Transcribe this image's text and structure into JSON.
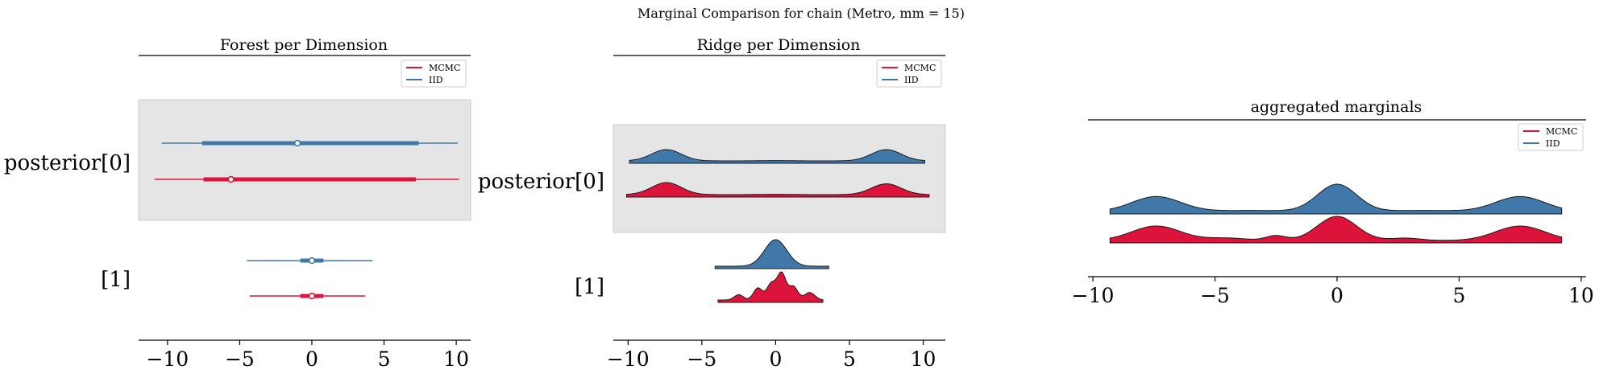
{
  "chart_data": {
    "suptitle": "Marginal Comparison for chain (Metro, mm = 15)",
    "colors": {
      "MCMC": "#dc143c",
      "IID": "#4178aa",
      "shade": "#e5e5e5"
    },
    "legend": [
      "MCMC",
      "IID"
    ],
    "panels": [
      {
        "type": "forest",
        "title": "Forest per Dimension",
        "xlim": [
          -12,
          11
        ],
        "ticks": [
          -10,
          -5,
          0,
          5,
          10
        ],
        "tick_labels": [
          "−10",
          "−5",
          "0",
          "5",
          "10"
        ],
        "rows": [
          {
            "label": "posterior[0]",
            "shaded": true,
            "series": {
              "IID": {
                "hdi94": [
                  -10.4,
                  10.1
                ],
                "hdi50": [
                  -7.6,
                  7.4
                ],
                "center": -1.0
              },
              "MCMC": {
                "hdi94": [
                  -10.9,
                  10.2
                ],
                "hdi50": [
                  -7.5,
                  7.2
                ],
                "center": -5.6
              }
            }
          },
          {
            "label": "[1]",
            "shaded": false,
            "series": {
              "IID": {
                "hdi94": [
                  -4.5,
                  4.2
                ],
                "hdi50": [
                  -0.8,
                  0.8
                ],
                "center": 0.0
              },
              "MCMC": {
                "hdi94": [
                  -4.3,
                  3.7
                ],
                "hdi50": [
                  -0.8,
                  0.8
                ],
                "center": 0.0
              }
            }
          }
        ]
      },
      {
        "type": "ridge",
        "title": "Ridge per Dimension",
        "xlim": [
          -11,
          11.5
        ],
        "ticks": [
          -10,
          -5,
          0,
          5,
          10
        ],
        "tick_labels": [
          "−10",
          "−5",
          "0",
          "5",
          "10"
        ],
        "rows": [
          {
            "label": "posterior[0]",
            "shaded": true,
            "series": {
              "IID": {
                "range": [
                  -9.9,
                  10.1
                ],
                "bumps": [
                  [
                    -7.4,
                    1.0,
                    1.0
                  ],
                  [
                    7.5,
                    1.0,
                    1.0
                  ],
                  [
                    0.0,
                    1.0,
                    0.03
                  ]
                ]
              },
              "MCMC": {
                "range": [
                  -10.1,
                  10.4
                ],
                "bumps": [
                  [
                    -7.4,
                    1.0,
                    1.0
                  ],
                  [
                    7.5,
                    1.0,
                    0.9
                  ],
                  [
                    0.0,
                    1.0,
                    0.03
                  ]
                ]
              }
            }
          },
          {
            "label": "[1]",
            "shaded": false,
            "series": {
              "IID": {
                "range": [
                  -4.1,
                  3.6
                ],
                "bumps": [
                  [
                    0.0,
                    0.75,
                    1.0
                  ]
                ]
              },
              "MCMC": {
                "range": [
                  -3.9,
                  3.2
                ],
                "bumps": [
                  [
                    -1.2,
                    0.3,
                    0.45
                  ],
                  [
                    -0.3,
                    0.3,
                    0.6
                  ],
                  [
                    0.4,
                    0.3,
                    1.0
                  ],
                  [
                    1.2,
                    0.3,
                    0.5
                  ],
                  [
                    2.3,
                    0.35,
                    0.28
                  ],
                  [
                    -2.5,
                    0.3,
                    0.2
                  ]
                ]
              }
            }
          }
        ]
      },
      {
        "type": "aggregated",
        "title": "aggregated marginals",
        "xlim": [
          -10.2,
          10.2
        ],
        "ticks": [
          -10,
          -5,
          0,
          5,
          10
        ],
        "tick_labels": [
          "−10",
          "−5",
          "0",
          "5",
          "10"
        ],
        "series": {
          "IID": {
            "range": [
              -9.3,
              9.2
            ],
            "bumps": [
              [
                -7.4,
                1.0,
                0.55
              ],
              [
                0.0,
                0.8,
                1.0
              ],
              [
                7.5,
                1.0,
                0.55
              ],
              [
                -3.5,
                1.5,
                0.04
              ],
              [
                3.5,
                1.5,
                0.04
              ]
            ]
          },
          "MCMC": {
            "range": [
              -9.3,
              9.2
            ],
            "bumps": [
              [
                -7.4,
                1.0,
                0.6
              ],
              [
                0.0,
                0.8,
                1.0
              ],
              [
                7.5,
                1.0,
                0.6
              ],
              [
                -2.5,
                0.4,
                0.2
              ],
              [
                -4.5,
                0.8,
                0.1
              ],
              [
                2.8,
                0.6,
                0.1
              ]
            ]
          }
        }
      }
    ]
  }
}
